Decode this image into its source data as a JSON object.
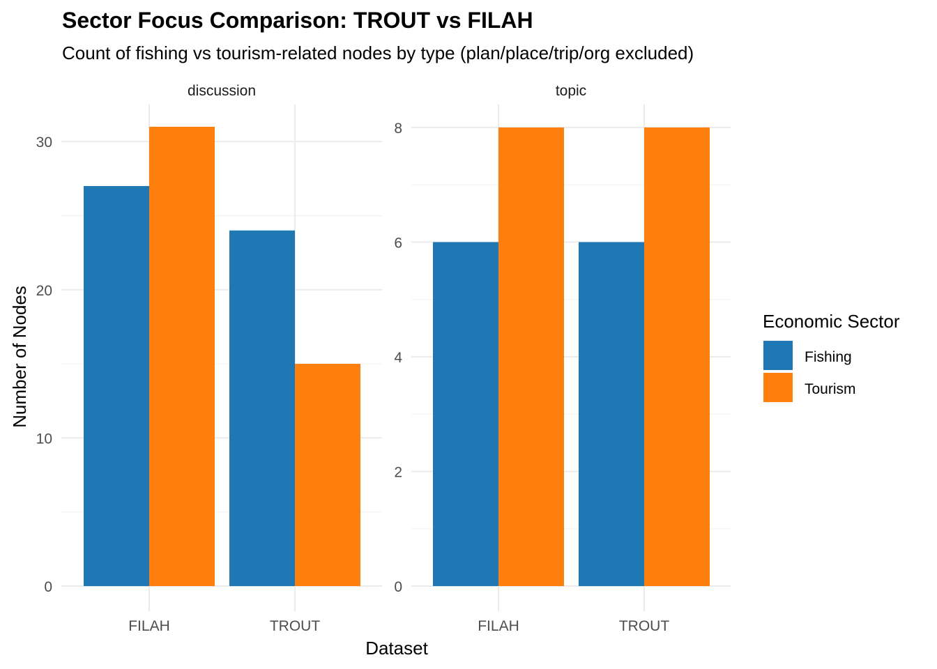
{
  "chart_data": {
    "type": "bar",
    "title": "Sector Focus Comparison: TROUT vs FILAH",
    "subtitle": "Count of fishing vs tourism-related nodes by type (plan/place/trip/org excluded)",
    "xlabel": "Dataset",
    "ylabel": "Number of Nodes",
    "legend": {
      "title": "Economic Sector",
      "placement": "right",
      "entries": [
        {
          "name": "Fishing",
          "color": "#1F77B4"
        },
        {
          "name": "Tourism",
          "color": "#FF7F0E"
        }
      ]
    },
    "grid": true,
    "facets": [
      {
        "label": "discussion",
        "categories": [
          "FILAH",
          "TROUT"
        ],
        "ylim": [
          0,
          32.5
        ],
        "yticks": [
          "0",
          "10",
          "20",
          "30"
        ],
        "ytick_values": [
          0,
          10,
          20,
          30
        ],
        "minor_ticks": [
          5,
          15,
          25
        ],
        "series": [
          {
            "name": "Fishing",
            "values": [
              27,
              24
            ]
          },
          {
            "name": "Tourism",
            "values": [
              31,
              15
            ]
          }
        ]
      },
      {
        "label": "topic",
        "categories": [
          "FILAH",
          "TROUT"
        ],
        "ylim": [
          0,
          8.4
        ],
        "yticks": [
          "0",
          "2",
          "4",
          "6",
          "8"
        ],
        "ytick_values": [
          0,
          2,
          4,
          6,
          8
        ],
        "minor_ticks": [
          1,
          3,
          5,
          7
        ],
        "series": [
          {
            "name": "Fishing",
            "values": [
              6,
              6
            ]
          },
          {
            "name": "Tourism",
            "values": [
              8,
              8
            ]
          }
        ]
      }
    ]
  }
}
